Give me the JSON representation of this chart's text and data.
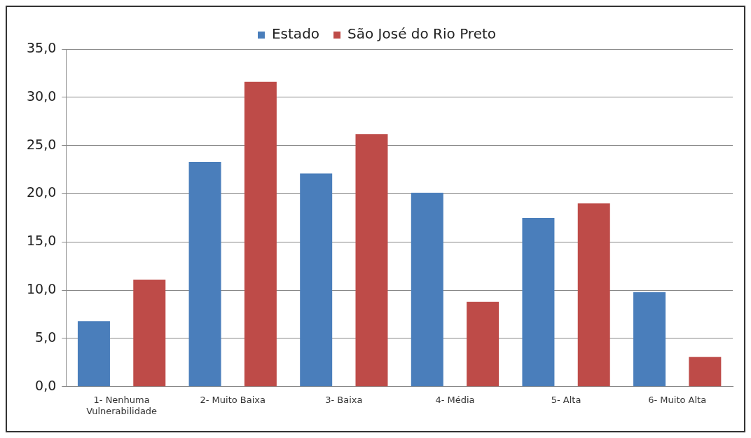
{
  "chart_data": {
    "type": "bar",
    "categories": [
      "1- Nenhuma Vulnerabilidade",
      "2- Muito Baixa",
      "3- Baixa",
      "4- Média",
      "5- Alta",
      "6- Muito Alta"
    ],
    "series": [
      {
        "name": "Estado",
        "color": "#4a7ebb",
        "values": [
          6.8,
          23.3,
          22.1,
          20.1,
          17.5,
          9.8
        ]
      },
      {
        "name": "São José do Rio Preto",
        "color": "#be4b48",
        "values": [
          11.1,
          31.6,
          26.2,
          8.8,
          19.0,
          3.1
        ]
      }
    ],
    "ylim": [
      0,
      35
    ],
    "yticks": [
      {
        "value": 0,
        "label": "0,0"
      },
      {
        "value": 5,
        "label": "5,0"
      },
      {
        "value": 10,
        "label": "10,0"
      },
      {
        "value": 15,
        "label": "15,0"
      },
      {
        "value": 20,
        "label": "20,0"
      },
      {
        "value": 25,
        "label": "25,0"
      },
      {
        "value": 30,
        "label": "30,0"
      },
      {
        "value": 35,
        "label": "35,0"
      }
    ],
    "grid": "y",
    "legend": "top"
  }
}
